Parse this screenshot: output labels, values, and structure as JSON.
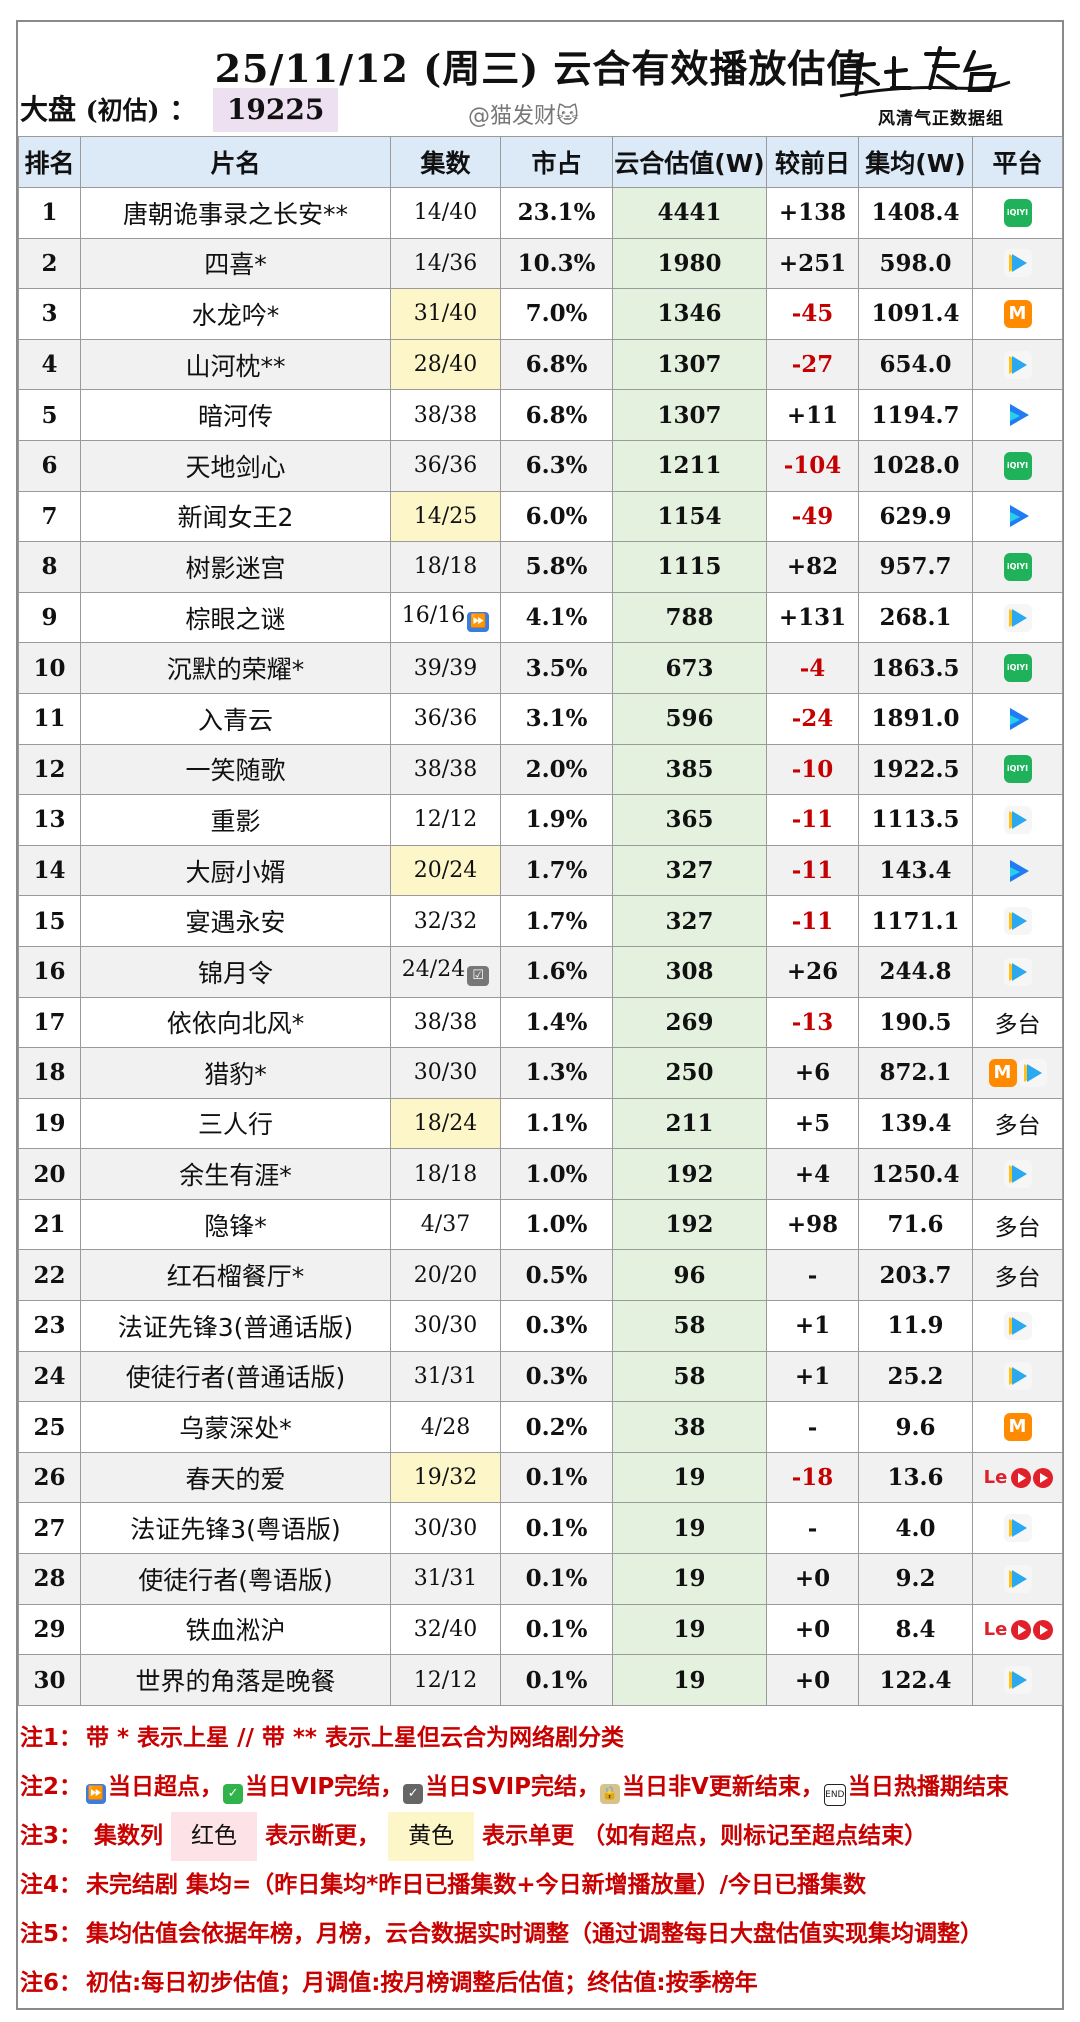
{
  "header": {
    "title": "25/11/12 (周三) 云合有效播放估值",
    "market_label": "大盘",
    "market_paren": "(初估)",
    "market_colon": "：",
    "market_value": "19225",
    "watermark": "@猫发财🐱",
    "logo_signature": "榜上有名",
    "logo_sub": "风清气正数据组"
  },
  "columns": [
    "排名",
    "片名",
    "集数",
    "市占",
    "云合估值(W)",
    "较前日",
    "集均(W)",
    "平台"
  ],
  "rows": [
    {
      "rank": "1",
      "name": "唐朝诡事录之长安**",
      "ep": "14/40",
      "ep_mark": "",
      "ep_hl": false,
      "share": "23.1%",
      "value": "4441",
      "change": "+138",
      "neg": false,
      "avg": "1408.4",
      "platform": [
        "iqiyi"
      ]
    },
    {
      "rank": "2",
      "name": "四喜*",
      "ep": "14/36",
      "ep_mark": "",
      "ep_hl": false,
      "share": "10.3%",
      "value": "1980",
      "change": "+251",
      "neg": false,
      "avg": "598.0",
      "platform": [
        "tencent"
      ]
    },
    {
      "rank": "3",
      "name": "水龙吟*",
      "ep": "31/40",
      "ep_mark": "",
      "ep_hl": true,
      "share": "7.0%",
      "value": "1346",
      "change": "-45",
      "neg": true,
      "avg": "1091.4",
      "platform": [
        "mango"
      ]
    },
    {
      "rank": "4",
      "name": "山河枕**",
      "ep": "28/40",
      "ep_mark": "",
      "ep_hl": true,
      "share": "6.8%",
      "value": "1307",
      "change": "-27",
      "neg": true,
      "avg": "654.0",
      "platform": [
        "tencent"
      ]
    },
    {
      "rank": "5",
      "name": "暗河传",
      "ep": "38/38",
      "ep_mark": "",
      "ep_hl": false,
      "share": "6.8%",
      "value": "1307",
      "change": "+11",
      "neg": false,
      "avg": "1194.7",
      "platform": [
        "youku"
      ]
    },
    {
      "rank": "6",
      "name": "天地剑心",
      "ep": "36/36",
      "ep_mark": "",
      "ep_hl": false,
      "share": "6.3%",
      "value": "1211",
      "change": "-104",
      "neg": true,
      "avg": "1028.0",
      "platform": [
        "iqiyi"
      ]
    },
    {
      "rank": "7",
      "name": "新闻女王2",
      "ep": "14/25",
      "ep_mark": "",
      "ep_hl": true,
      "share": "6.0%",
      "value": "1154",
      "change": "-49",
      "neg": true,
      "avg": "629.9",
      "platform": [
        "youku"
      ]
    },
    {
      "rank": "8",
      "name": "树影迷宫",
      "ep": "18/18",
      "ep_mark": "",
      "ep_hl": false,
      "share": "5.8%",
      "value": "1115",
      "change": "+82",
      "neg": false,
      "avg": "957.7",
      "platform": [
        "iqiyi"
      ]
    },
    {
      "rank": "9",
      "name": "棕眼之谜",
      "ep": "16/16",
      "ep_mark": "⏩",
      "ep_hl": false,
      "share": "4.1%",
      "value": "788",
      "change": "+131",
      "neg": false,
      "avg": "268.1",
      "platform": [
        "tencent"
      ]
    },
    {
      "rank": "10",
      "name": "沉默的荣耀*",
      "ep": "39/39",
      "ep_mark": "",
      "ep_hl": false,
      "share": "3.5%",
      "value": "673",
      "change": "-4",
      "neg": true,
      "avg": "1863.5",
      "platform": [
        "iqiyi"
      ]
    },
    {
      "rank": "11",
      "name": "入青云",
      "ep": "36/36",
      "ep_mark": "",
      "ep_hl": false,
      "share": "3.1%",
      "value": "596",
      "change": "-24",
      "neg": true,
      "avg": "1891.0",
      "platform": [
        "youku"
      ]
    },
    {
      "rank": "12",
      "name": "一笑随歌",
      "ep": "38/38",
      "ep_mark": "",
      "ep_hl": false,
      "share": "2.0%",
      "value": "385",
      "change": "-10",
      "neg": true,
      "avg": "1922.5",
      "platform": [
        "iqiyi"
      ]
    },
    {
      "rank": "13",
      "name": "重影",
      "ep": "12/12",
      "ep_mark": "",
      "ep_hl": false,
      "share": "1.9%",
      "value": "365",
      "change": "-11",
      "neg": true,
      "avg": "1113.5",
      "platform": [
        "tencent"
      ]
    },
    {
      "rank": "14",
      "name": "大厨小婿",
      "ep": "20/24",
      "ep_mark": "",
      "ep_hl": true,
      "share": "1.7%",
      "value": "327",
      "change": "-11",
      "neg": true,
      "avg": "143.4",
      "platform": [
        "youku"
      ]
    },
    {
      "rank": "15",
      "name": "宴遇永安",
      "ep": "32/32",
      "ep_mark": "",
      "ep_hl": false,
      "share": "1.7%",
      "value": "327",
      "change": "-11",
      "neg": true,
      "avg": "1171.1",
      "platform": [
        "tencent"
      ]
    },
    {
      "rank": "16",
      "name": "锦月令",
      "ep": "24/24",
      "ep_mark": "☑",
      "ep_hl": false,
      "share": "1.6%",
      "value": "308",
      "change": "+26",
      "neg": false,
      "avg": "244.8",
      "platform": [
        "tencent"
      ]
    },
    {
      "rank": "17",
      "name": "依依向北风*",
      "ep": "38/38",
      "ep_mark": "",
      "ep_hl": false,
      "share": "1.4%",
      "value": "269",
      "change": "-13",
      "neg": true,
      "avg": "190.5",
      "platform": [
        "text:多台"
      ]
    },
    {
      "rank": "18",
      "name": "猎豹*",
      "ep": "30/30",
      "ep_mark": "",
      "ep_hl": false,
      "share": "1.3%",
      "value": "250",
      "change": "+6",
      "neg": false,
      "avg": "872.1",
      "platform": [
        "mango",
        "tencent"
      ]
    },
    {
      "rank": "19",
      "name": "三人行",
      "ep": "18/24",
      "ep_mark": "",
      "ep_hl": true,
      "share": "1.1%",
      "value": "211",
      "change": "+5",
      "neg": false,
      "avg": "139.4",
      "platform": [
        "text:多台"
      ]
    },
    {
      "rank": "20",
      "name": "余生有涯*",
      "ep": "18/18",
      "ep_mark": "",
      "ep_hl": false,
      "share": "1.0%",
      "value": "192",
      "change": "+4",
      "neg": false,
      "avg": "1250.4",
      "platform": [
        "tencent"
      ]
    },
    {
      "rank": "21",
      "name": "隐锋*",
      "ep": "4/37",
      "ep_mark": "",
      "ep_hl": false,
      "share": "1.0%",
      "value": "192",
      "change": "+98",
      "neg": false,
      "avg": "71.6",
      "platform": [
        "text:多台"
      ]
    },
    {
      "rank": "22",
      "name": "红石榴餐厅*",
      "ep": "20/20",
      "ep_mark": "",
      "ep_hl": false,
      "share": "0.5%",
      "value": "96",
      "change": "-",
      "neg": false,
      "avg": "203.7",
      "platform": [
        "text:多台"
      ]
    },
    {
      "rank": "23",
      "name": "法证先锋3(普通话版)",
      "ep": "30/30",
      "ep_mark": "",
      "ep_hl": false,
      "share": "0.3%",
      "value": "58",
      "change": "+1",
      "neg": false,
      "avg": "11.9",
      "platform": [
        "tencent"
      ]
    },
    {
      "rank": "24",
      "name": "使徒行者(普通话版)",
      "ep": "31/31",
      "ep_mark": "",
      "ep_hl": false,
      "share": "0.3%",
      "value": "58",
      "change": "+1",
      "neg": false,
      "avg": "25.2",
      "platform": [
        "tencent"
      ]
    },
    {
      "rank": "25",
      "name": "乌蒙深处*",
      "ep": "4/28",
      "ep_mark": "",
      "ep_hl": false,
      "share": "0.2%",
      "value": "38",
      "change": "-",
      "neg": false,
      "avg": "9.6",
      "platform": [
        "mango"
      ]
    },
    {
      "rank": "26",
      "name": "春天的爱",
      "ep": "19/32",
      "ep_mark": "",
      "ep_hl": true,
      "share": "0.1%",
      "value": "19",
      "change": "-18",
      "neg": true,
      "avg": "13.6",
      "platform": [
        "le",
        "circle",
        "circle"
      ]
    },
    {
      "rank": "27",
      "name": "法证先锋3(粤语版)",
      "ep": "30/30",
      "ep_mark": "",
      "ep_hl": false,
      "share": "0.1%",
      "value": "19",
      "change": "-",
      "neg": false,
      "avg": "4.0",
      "platform": [
        "tencent"
      ]
    },
    {
      "rank": "28",
      "name": "使徒行者(粤语版)",
      "ep": "31/31",
      "ep_mark": "",
      "ep_hl": false,
      "share": "0.1%",
      "value": "19",
      "change": "+0",
      "neg": false,
      "avg": "9.2",
      "platform": [
        "tencent"
      ]
    },
    {
      "rank": "29",
      "name": "铁血淞沪",
      "ep": "32/40",
      "ep_mark": "",
      "ep_hl": false,
      "share": "0.1%",
      "value": "19",
      "change": "+0",
      "neg": false,
      "avg": "8.4",
      "platform": [
        "le",
        "circle",
        "circle"
      ]
    },
    {
      "rank": "30",
      "name": "世界的角落是晚餐",
      "ep": "12/12",
      "ep_mark": "",
      "ep_hl": false,
      "share": "0.1%",
      "value": "19",
      "change": "+0",
      "neg": false,
      "avg": "122.4",
      "platform": [
        "tencent"
      ]
    }
  ],
  "platform_text": {
    "le": "Le"
  },
  "notes": {
    "n1": {
      "label": "注1：",
      "text": "带 * 表示上星 // 带 ** 表示上星但云合为网络剧分类"
    },
    "n2": {
      "label": "注2：",
      "a": "当日超点，",
      "b": "当日VIP完结，",
      "c": "当日SVIP完结，",
      "d": "当日非V更新结束，",
      "e": "当日热播期结束"
    },
    "n3": {
      "label": "注3：",
      "a": "集数列",
      "red": "红色",
      "b": "表示断更，",
      "yellow": "黄色",
      "c": "表示单更 （如有超点，则标记至超点结束）"
    },
    "n4": {
      "label": "注4：",
      "text": "未完结剧 集均=（昨日集均*昨日已播集数+今日新增播放量）/今日已播集数"
    },
    "n5": {
      "label": "注5：",
      "text": "集均估值会依据年榜，月榜，云合数据实时调整（通过调整每日大盘估值实现集均调整）"
    },
    "n6": {
      "label": "注6：",
      "text": "初估:每日初步估值；月调值:按月榜调整后估值；终估值:按季榜年"
    }
  },
  "note_icons": {
    "fast": "⏩",
    "vip": "✓",
    "svip": "✓",
    "lock": "🔒",
    "end": "END"
  }
}
